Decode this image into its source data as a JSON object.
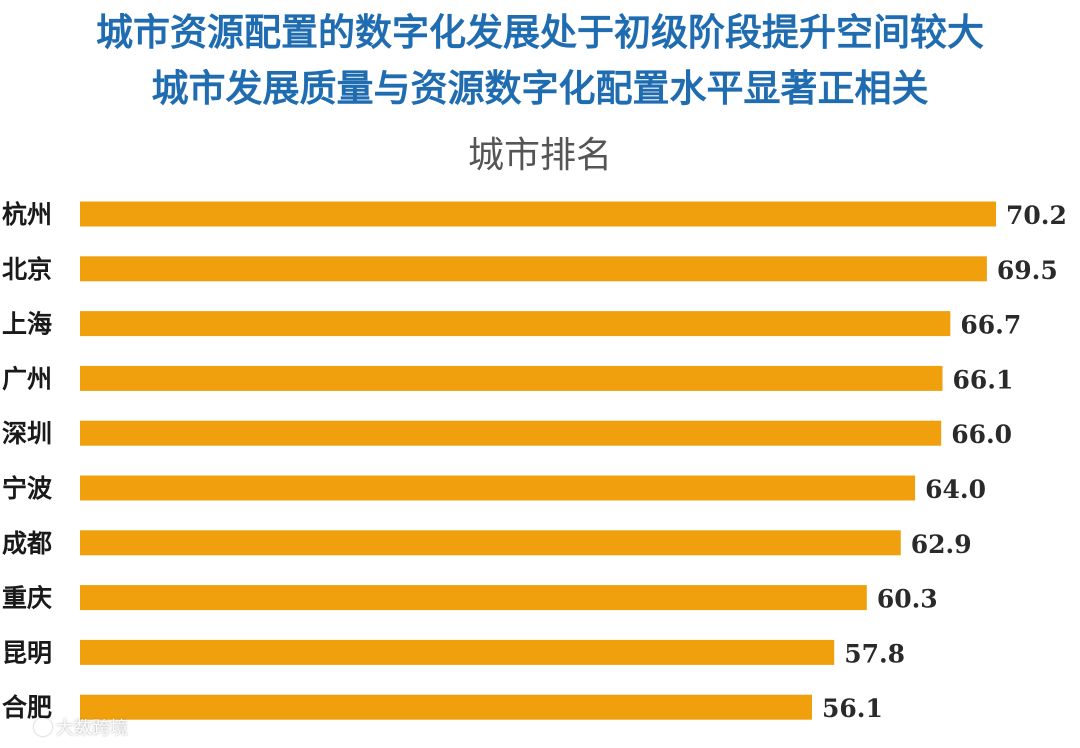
{
  "headline": {
    "line1": "城市资源配置的数字化发展处于初级阶段提升空间较大",
    "line2": "城市发展质量与资源数字化配置水平显著正相关"
  },
  "watermark": {
    "text": "大数跨境"
  },
  "colors": {
    "headline": "#1f6cb0",
    "bar": "#f0a00c",
    "title": "#555555"
  },
  "chart_data": {
    "type": "bar",
    "orientation": "horizontal",
    "title": "城市排名",
    "xlabel": "",
    "ylabel": "",
    "categories": [
      "杭州",
      "北京",
      "上海",
      "广州",
      "深圳",
      "宁波",
      "成都",
      "重庆",
      "昆明",
      "合肥"
    ],
    "values": [
      70.2,
      69.5,
      66.7,
      66.1,
      66.0,
      64.0,
      62.9,
      60.3,
      57.8,
      56.1
    ],
    "value_labels": [
      "70.2",
      "69.5",
      "66.7",
      "66.1",
      "66.0",
      "64.0",
      "62.9",
      "60.3",
      "57.8",
      "56.1"
    ],
    "grid": false,
    "legend": "none"
  }
}
